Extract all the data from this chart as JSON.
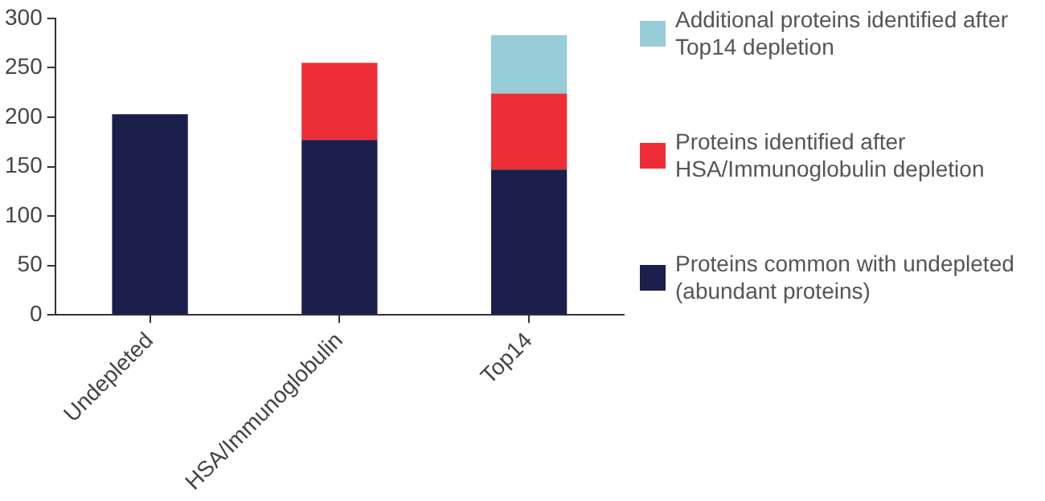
{
  "chart_data": {
    "type": "bar",
    "stacked": true,
    "categories": [
      "Undepleted",
      "HSA/Immunoglobulin",
      "Top14"
    ],
    "series": [
      {
        "name": "Proteins common with undepleted (abundant proteins)",
        "color": "#1c1f4c",
        "values": [
          203,
          177,
          147
        ]
      },
      {
        "name": "Proteins identified after HSA/Immunoglobulin depletion",
        "color": "#ee2e36",
        "values": [
          null,
          78,
          77
        ]
      },
      {
        "name": "Additional proteins identified after Top14 depletion",
        "color": "#97ccd8",
        "values": [
          null,
          null,
          59
        ]
      }
    ],
    "ylim": [
      0,
      300
    ],
    "yticks": [
      0,
      50,
      100,
      150,
      200,
      250,
      300
    ],
    "grid": false,
    "legend": "right"
  }
}
